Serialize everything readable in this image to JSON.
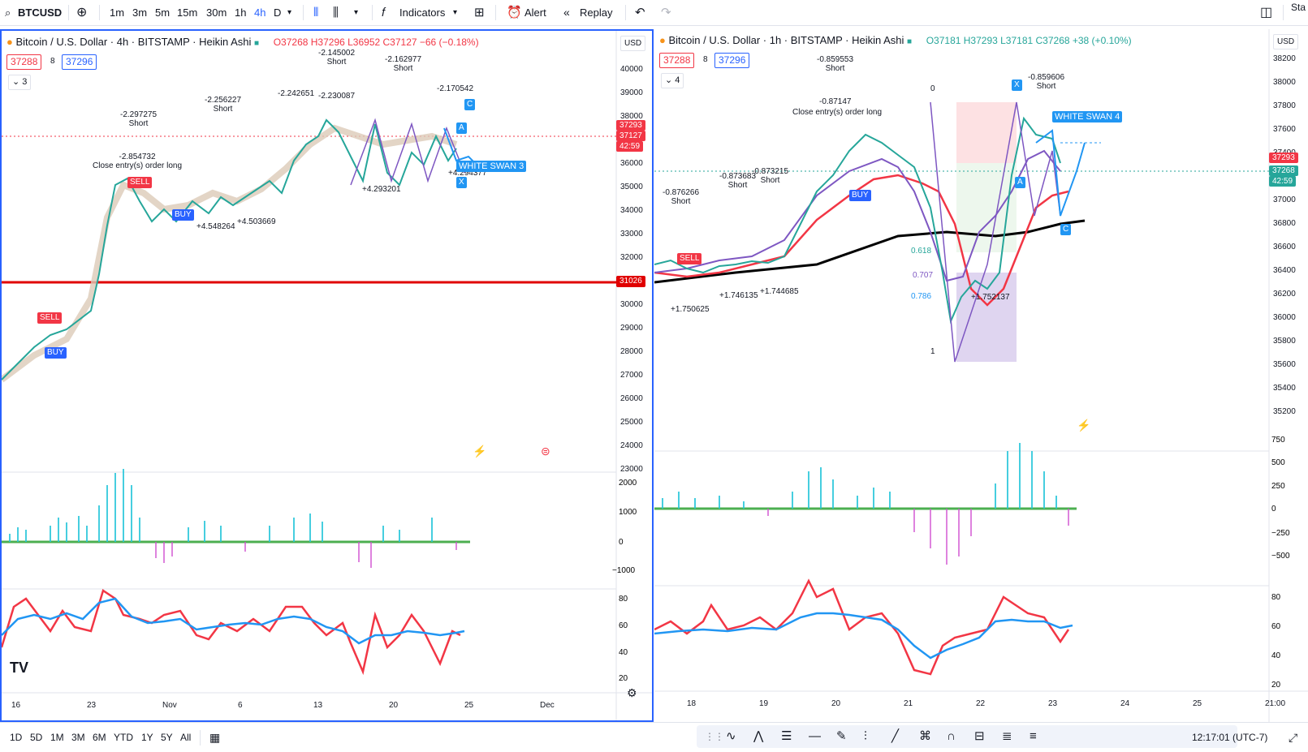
{
  "toolbar": {
    "symbol": "BTCUSD",
    "intervals": [
      "1m",
      "3m",
      "5m",
      "15m",
      "30m",
      "1h",
      "4h",
      "D"
    ],
    "active_interval": "4h",
    "indicators_label": "Indicators",
    "alert_label": "Alert",
    "replay_label": "Replay",
    "right_text": "Sta"
  },
  "left_chart": {
    "title": "Bitcoin / U.S. Dollar · 4h · BITSTAMP · Heikin Ashi",
    "ohlc": "O37268 H37296 L36952 C37127 −66 (−0.18%)",
    "bid": "37288",
    "spread": "8",
    "ask": "37296",
    "collapse_count": "3",
    "currency": "USD",
    "price_ticks": [
      "40000",
      "39000",
      "38000",
      "37000",
      "36000",
      "35000",
      "34000",
      "33000",
      "32000",
      "31000",
      "30000",
      "29000",
      "28000",
      "27000",
      "26000",
      "25000",
      "24000",
      "23000"
    ],
    "current_price": "37293",
    "current_price2": "37127",
    "countdown": "42:59",
    "hline_price": "31026",
    "osc_ticks": [
      "2000",
      "1000",
      "0",
      "−1000"
    ],
    "rsi_ticks": [
      "80",
      "60",
      "40",
      "20"
    ],
    "time_ticks": [
      "16",
      "23",
      "Nov",
      "6",
      "13",
      "20",
      "25",
      "Dec"
    ],
    "labels": {
      "sell1": "SELL",
      "buy1": "BUY",
      "sell2": "SELL",
      "buy2": "BUY",
      "short1": "-2.297275",
      "short1b": "Short",
      "close1": "-2.854732",
      "close1b": "Close entry(s) order long",
      "short2": "-2.256227",
      "short2b": "Short",
      "short3": "-2.145002",
      "short3b": "Short",
      "short4": "-2.162977",
      "short4b": "Short",
      "short5": "-2.170542",
      "short5b": "Short",
      "short6": "-2.242651",
      "short7": "-2.230087",
      "white_swan": "WHITE SWAN 3",
      "long1": "+4.548264",
      "long2": "+4.503669",
      "long3": "+4.293201",
      "long4": "+4.294377",
      "A": "A",
      "C": "C",
      "X": "X"
    }
  },
  "right_chart": {
    "title": "Bitcoin / U.S. Dollar · 1h · BITSTAMP · Heikin Ashi",
    "ohlc": "O37181 H37293 L37181 C37268 +38 (+0.10%)",
    "bid": "37288",
    "spread": "8",
    "ask": "37296",
    "collapse_count": "4",
    "currency": "USD",
    "price_ticks": [
      "38200",
      "38000",
      "37800",
      "37600",
      "37400",
      "37200",
      "37000",
      "36800",
      "36600",
      "36400",
      "36200",
      "36000",
      "35800",
      "35600",
      "35400",
      "35200"
    ],
    "current_price": "37293",
    "current_price2": "37268",
    "countdown": "42:59",
    "osc_ticks": [
      "750",
      "500",
      "250",
      "0",
      "−250",
      "−500"
    ],
    "rsi_ticks": [
      "80",
      "60",
      "40",
      "20"
    ],
    "time_ticks": [
      "18",
      "19",
      "20",
      "21",
      "22",
      "23",
      "24",
      "25",
      "21:00"
    ],
    "labels": {
      "short1": "-0.859553",
      "short1b": "Short",
      "short2": "-0.859606",
      "short2b": "Short",
      "short3": "-0.87147",
      "close1": "Close entry(s) order long",
      "short4": "-0.876266",
      "short4b": "Short",
      "short5": "-0.873683",
      "short5b": "Short",
      "short6": "-0.873215",
      "short6b": "Short",
      "long1": "+1.750625",
      "long2": "+1.746135",
      "long3": "+1.744685",
      "long4": "+1.752137",
      "fib0": "0",
      "fib1": "1",
      "fib618": "0.618",
      "fib707": "0.707",
      "fib786": "0.786",
      "white_swan": "WHITE SWAN 4",
      "X": "X",
      "C": "C",
      "A": "A",
      "sell": "SELL",
      "buy": "BUY"
    }
  },
  "bottombar": {
    "ranges": [
      "1D",
      "5D",
      "1M",
      "3M",
      "6M",
      "YTD",
      "1Y",
      "5Y",
      "All"
    ],
    "clock": "12:17:01 (UTC-7)"
  },
  "colors": {
    "accent": "#2962ff",
    "buy": "#2962ff",
    "sell": "#f23645",
    "hline": "#e00000",
    "teal": "#26c6da",
    "magenta": "#d14fd1"
  }
}
